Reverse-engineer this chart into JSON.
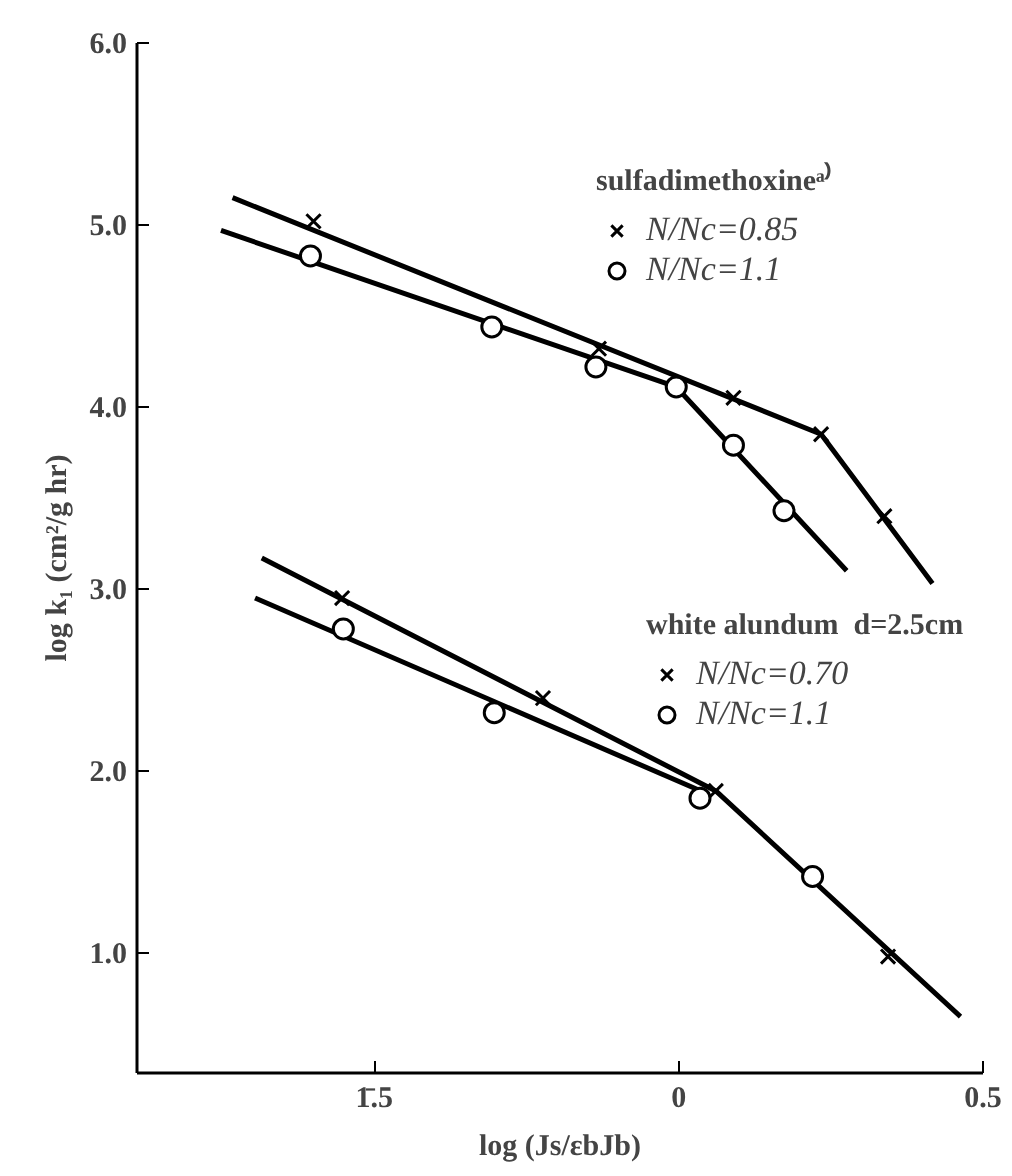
{
  "chart_data": {
    "type": "scatter",
    "xlabel": "log (Js/εbJb)",
    "ylabel": "log k₁ (cm²/g hr)",
    "annotations": [
      "sulfadimethoxineᵃ⁾",
      "white alundum  d=2.5cm"
    ],
    "xlim": [
      -0.89,
      0.5
    ],
    "ylim": [
      0.34,
      6.0
    ],
    "xticks": [
      {
        "value": -0.5,
        "label": "1̄.5"
      },
      0,
      0.5
    ],
    "yticks": [
      {
        "value": 1,
        "label": "1.0"
      },
      {
        "value": 2,
        "label": "2.0"
      },
      {
        "value": 3,
        "label": "3.0"
      },
      {
        "value": 4,
        "label": "4.0"
      },
      {
        "value": 5,
        "label": "5.0"
      },
      {
        "value": 6,
        "label": "6.0"
      }
    ],
    "grid": false,
    "legend": "right",
    "series": [
      {
        "name": "N/Nc=0.85",
        "marker": "cross",
        "color": "#000000",
        "x": [
          -0.6,
          -0.131,
          0.09,
          0.234,
          0.338
        ],
        "values": [
          5.02,
          4.32,
          4.05,
          3.85,
          3.4
        ]
      },
      {
        "name": "N/Nc=1.1",
        "marker": "circle",
        "color": "#000000",
        "x": [
          -0.605,
          -0.307,
          -0.136,
          -0.004,
          0.09,
          0.173
        ],
        "values": [
          4.83,
          4.44,
          4.22,
          4.11,
          3.79,
          3.43
        ]
      },
      {
        "name": "N/Nc=0.70",
        "marker": "cross",
        "color": "#000000",
        "x": [
          -0.553,
          -0.223,
          0.061,
          0.344
        ],
        "values": [
          2.95,
          2.4,
          1.89,
          0.98
        ]
      },
      {
        "name": "N/Nc=1.1",
        "marker": "circle",
        "color": "#000000",
        "x": [
          -0.551,
          -0.303,
          0.035,
          0.22
        ],
        "values": [
          2.78,
          2.32,
          1.85,
          1.42
        ]
      },
      {
        "type": "line",
        "color": "#000000",
        "x": [
          -0.733,
          0.234,
          0.417
        ],
        "values": [
          5.15,
          3.85,
          3.03
        ]
      },
      {
        "type": "line",
        "color": "#000000",
        "x": [
          -0.752,
          -0.004,
          0.276
        ],
        "values": [
          4.97,
          4.11,
          3.1
        ]
      },
      {
        "type": "line",
        "color": "#000000",
        "x": [
          -0.685,
          0.061,
          0.463
        ],
        "values": [
          3.17,
          1.89,
          0.65
        ]
      },
      {
        "type": "line",
        "color": "#000000",
        "x": [
          -0.696,
          0.05
        ],
        "values": [
          2.95,
          1.87
        ]
      }
    ]
  }
}
